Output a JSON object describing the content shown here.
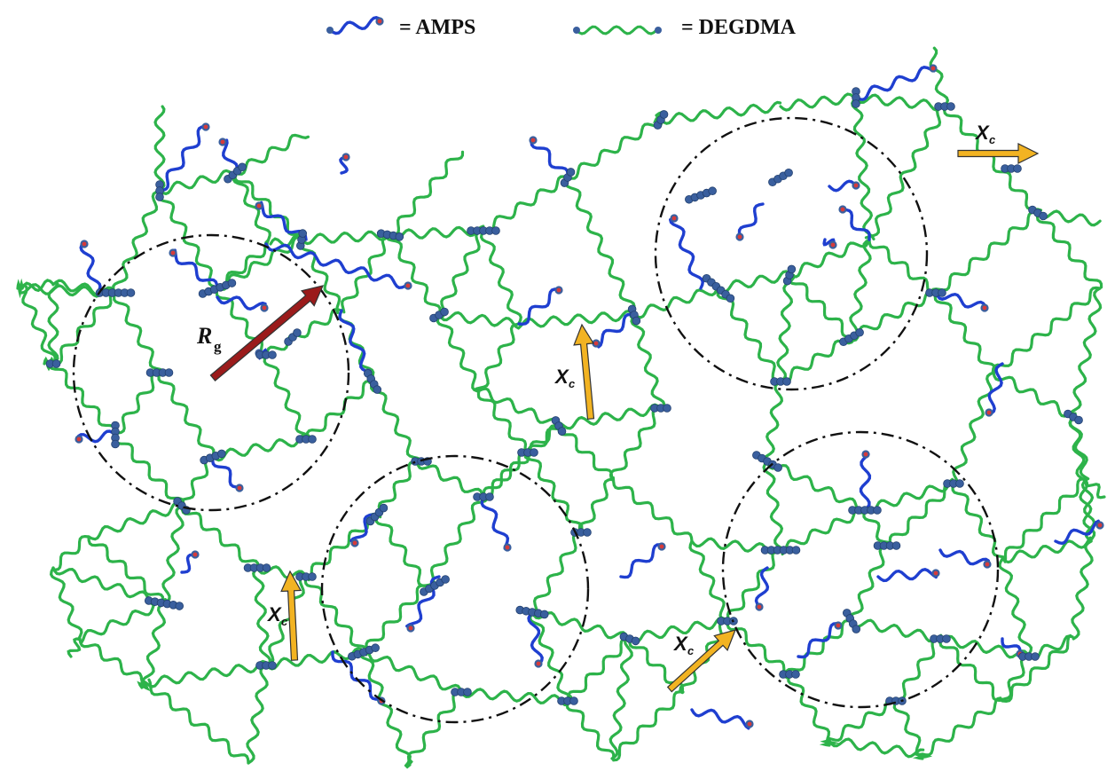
{
  "legend": {
    "amps_label": "= AMPS",
    "degdma_label": "= DEGDMA"
  },
  "labels": {
    "rg_main": "R",
    "rg_sub": "g",
    "xc_main": "X",
    "xc_sub": "c"
  },
  "colors": {
    "amps_chain": "#1f3fd0",
    "degdma_chain": "#2db34a",
    "bead": "#3a5f9e",
    "amps_end": "#d63b3b",
    "rg_arrow": "#9b1b1b",
    "xc_arrow": "#f2b322",
    "circle": "#111111"
  }
}
